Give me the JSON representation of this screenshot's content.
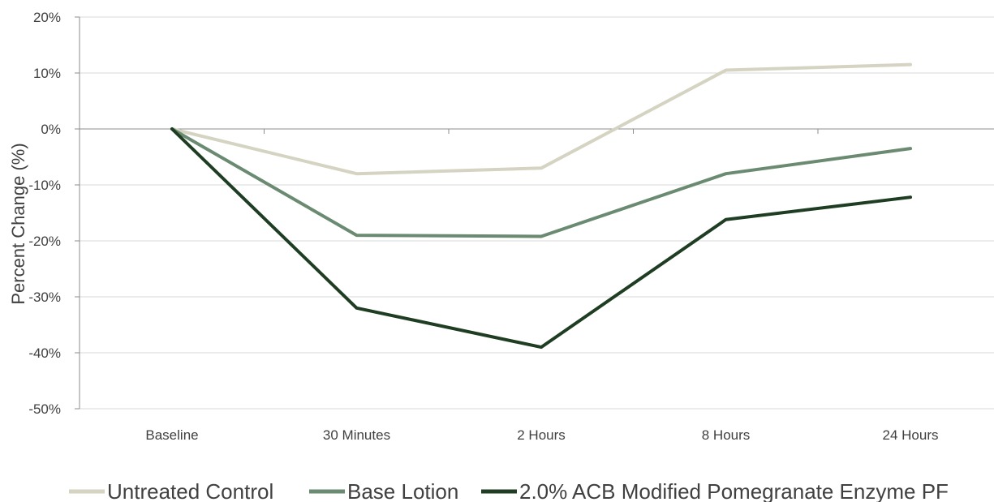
{
  "chart_data": {
    "type": "line",
    "categories": [
      "Baseline",
      "30 Minutes",
      "2 Hours",
      "8 Hours",
      "24 Hours"
    ],
    "series": [
      {
        "name": "Untreated Control",
        "color": "#d5d3c1",
        "values": [
          0,
          -8,
          -7,
          10.5,
          11.5
        ]
      },
      {
        "name": "Base Lotion",
        "color": "#6b8a72",
        "values": [
          0,
          -19,
          -19.2,
          -8,
          -3.5
        ]
      },
      {
        "name": "2.0% ACB Modified Pomegranate Enzyme PF",
        "color": "#1f3d22",
        "values": [
          0,
          -32,
          -39,
          -16.2,
          -12.2
        ]
      }
    ],
    "y_ticks": [
      "20%",
      "10%",
      "0%",
      "-10%",
      "-20%",
      "-30%",
      "-40%",
      "-50%"
    ],
    "ylabel": "Percent Change (%)",
    "xlabel": "",
    "ylim": [
      -50,
      20
    ],
    "grid": true,
    "legend_position": "bottom"
  }
}
